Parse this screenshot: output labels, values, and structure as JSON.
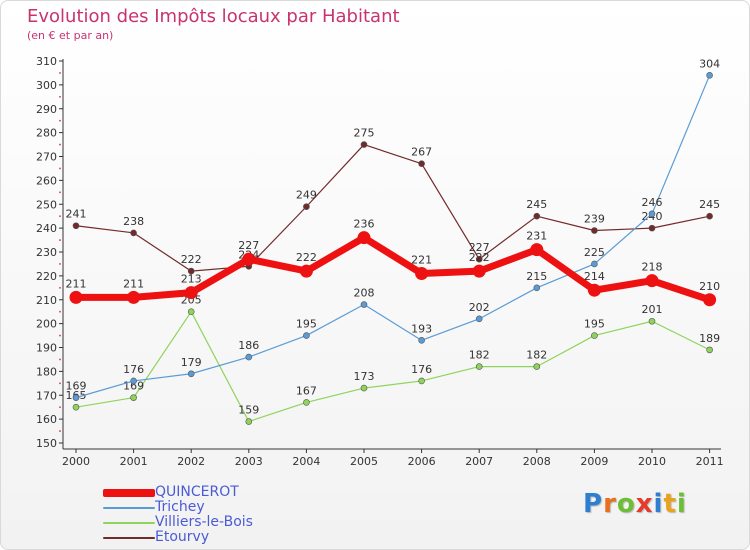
{
  "chart_data": {
    "type": "line",
    "title": "Evolution des Impôts locaux par Habitant",
    "subtitle": "(en € et par an)",
    "xlabel": "",
    "ylabel": "",
    "ylim": [
      150,
      310
    ],
    "ytick_step": 10,
    "grid": false,
    "legend_position": "bottom-left",
    "x": [
      "2000",
      "2001",
      "2002",
      "2003",
      "2004",
      "2005",
      "2006",
      "2007",
      "2008",
      "2009",
      "2010",
      "2011"
    ],
    "series": [
      {
        "name": "Etourvy",
        "color": "#722a2a",
        "values": [
          241,
          238,
          222,
          224,
          249,
          275,
          267,
          227,
          245,
          239,
          240,
          245
        ],
        "labels": [
          "241",
          "238",
          "222",
          "224",
          "249",
          "275",
          "267",
          "227",
          "245",
          "239",
          "240",
          "245"
        ]
      },
      {
        "name": "Villiers-le-Bois",
        "color": "#8ed45b",
        "values": [
          165,
          169,
          205,
          159,
          167,
          173,
          176,
          182,
          182,
          195,
          201,
          189
        ],
        "labels": [
          "165",
          "169",
          "205",
          "159",
          "167",
          "173",
          "176",
          "182",
          "182",
          "195",
          "201",
          "189"
        ]
      },
      {
        "name": "Trichey",
        "color": "#5b9bd5",
        "values": [
          169,
          176,
          179,
          186,
          195,
          208,
          193,
          202,
          215,
          225,
          246,
          304
        ],
        "labels": [
          "169",
          "176",
          "179",
          "186",
          "195",
          "208",
          "193",
          "202",
          "215",
          "225",
          "246",
          "304"
        ]
      },
      {
        "name": "QUINCEROT",
        "color": "#ee1111",
        "values": [
          211,
          211,
          213,
          227,
          222,
          236,
          221,
          222,
          231,
          214,
          218,
          210
        ],
        "labels": [
          "211",
          "211",
          "213",
          "227",
          "222",
          "236",
          "221",
          "222",
          "231",
          "214",
          "218",
          "210"
        ]
      }
    ],
    "legend": [
      {
        "name": "QUINCEROT",
        "color": "#ee1111"
      },
      {
        "name": "Trichey",
        "color": "#5b9bd5"
      },
      {
        "name": "Villiers-le-Bois",
        "color": "#8ed45b"
      },
      {
        "name": "Etourvy",
        "color": "#722a2a"
      }
    ]
  },
  "logo": {
    "text": "Proxiti",
    "letters": [
      {
        "ch": "P",
        "color": "#2f7fd1"
      },
      {
        "ch": "r",
        "color": "#e96f1c"
      },
      {
        "ch": "o",
        "color": "#6cbf35"
      },
      {
        "ch": "x",
        "color": "#e53b2c"
      },
      {
        "ch": "i",
        "color": "#2f7fd1"
      },
      {
        "ch": "t",
        "color": "#e9a21c"
      },
      {
        "ch": "i",
        "color": "#6cbf35"
      }
    ]
  }
}
